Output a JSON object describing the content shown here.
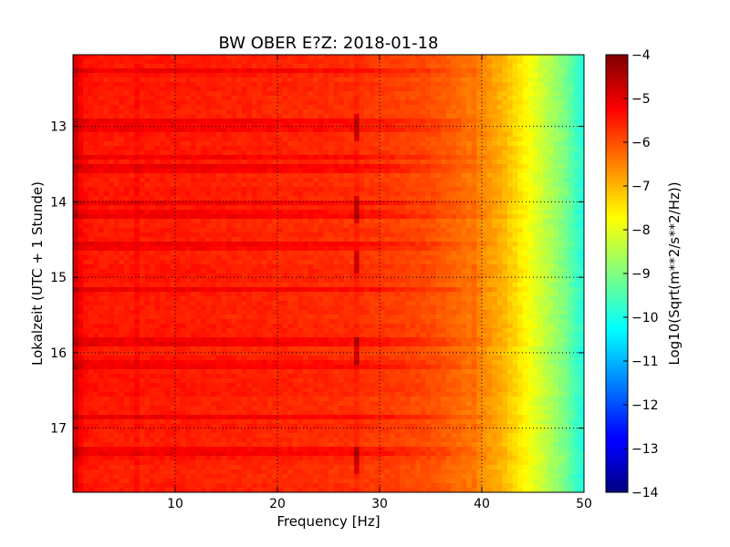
{
  "chart_data": {
    "type": "heatmap",
    "title": "BW OBER E?Z: 2018-01-18",
    "xlabel": "Frequency [Hz]",
    "ylabel": "Lokalzeit (UTC + 1 Stunde)",
    "xlim": [
      0,
      50
    ],
    "ylim": [
      17.85,
      12.05
    ],
    "x_ticks": [
      10,
      20,
      30,
      40,
      50
    ],
    "y_ticks": [
      13,
      14,
      15,
      16,
      17
    ],
    "grid": true,
    "colormap": "jet",
    "colorbar": {
      "label": "Log10(Sqrt(m**2/s**2/Hz))",
      "min": -14,
      "max": -4,
      "ticks": [
        -4,
        -5,
        -6,
        -7,
        -8,
        -9,
        -10,
        -11,
        -12,
        -13,
        -14
      ]
    },
    "spectrum_profile": {
      "frequency": [
        0,
        0.5,
        1,
        3,
        6,
        10,
        20,
        27,
        30,
        35,
        38,
        40,
        42,
        44,
        46,
        48,
        50
      ],
      "level": [
        -4.6,
        -5.1,
        -5.4,
        -5.5,
        -5.5,
        -5.5,
        -5.6,
        -5.7,
        -5.8,
        -6.0,
        -6.3,
        -6.6,
        -7.0,
        -7.6,
        -8.3,
        -9.0,
        -10.0
      ]
    },
    "persistent_lines_hz": [
      6.2,
      27.6,
      39.3
    ],
    "bright_bands_hours": [
      12.25,
      12.95,
      13.05,
      13.4,
      13.55,
      14.0,
      14.15,
      14.6,
      15.15,
      15.85,
      16.15,
      16.85,
      17.3
    ],
    "dark_spot_hours_at_27_6hz": [
      13.0,
      14.1,
      14.8,
      16.0,
      17.4
    ]
  }
}
